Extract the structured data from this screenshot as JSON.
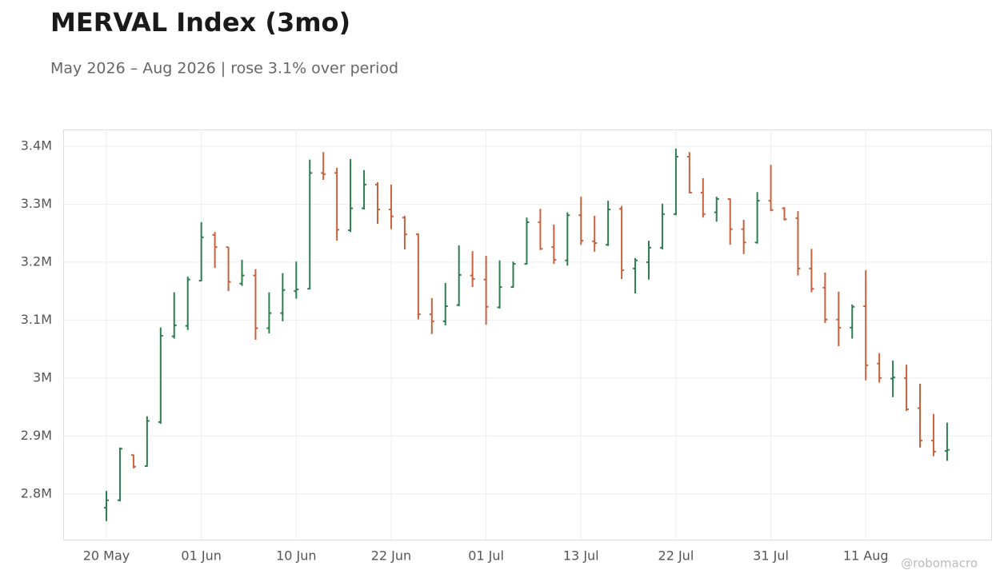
{
  "chart_data": {
    "type": "ohlc",
    "title": "MERVAL Index (3mo)",
    "subtitle": "May 2026 – Aug 2026 | rose 3.1% over period",
    "watermark": "@robomacro",
    "categories": [
      "20 May",
      null,
      null,
      null,
      null,
      null,
      null,
      "01 Jun",
      null,
      null,
      null,
      null,
      null,
      null,
      "10 Jun",
      null,
      null,
      null,
      null,
      null,
      null,
      "22 Jun",
      null,
      null,
      null,
      null,
      null,
      null,
      "01 Jul",
      null,
      null,
      null,
      null,
      null,
      null,
      "13 Jul",
      null,
      null,
      null,
      null,
      null,
      null,
      "22 Jul",
      null,
      null,
      null,
      null,
      null,
      null,
      "31 Jul",
      null,
      null,
      null,
      null,
      null,
      null,
      "11 Aug",
      null,
      null,
      null,
      null,
      null,
      null
    ],
    "open": [
      2776000,
      2789000,
      2867000,
      2848000,
      2924000,
      3072000,
      3090000,
      3168000,
      3247000,
      3226000,
      3163000,
      3177000,
      3086000,
      3112000,
      3150000,
      3154000,
      3354000,
      3354000,
      3255000,
      3293000,
      3334000,
      3291000,
      3277000,
      3248000,
      3110000,
      3098000,
      3126000,
      3177000,
      3170000,
      3122000,
      3157000,
      3197000,
      3269000,
      3226000,
      3203000,
      3281000,
      3236000,
      3230000,
      3292000,
      3189000,
      3200000,
      3225000,
      3283000,
      3382000,
      3320000,
      3286000,
      3309000,
      3257000,
      3234000,
      3306000,
      3293000,
      3276000,
      3189000,
      3156000,
      3101000,
      3087000,
      3124000,
      3025000,
      2999000,
      3000000,
      2948000,
      2892000,
      2874000
    ],
    "high": [
      2805000,
      2880000,
      2868000,
      2934000,
      3087000,
      3148000,
      3175000,
      3269000,
      3252000,
      3226000,
      3204000,
      3188000,
      3148000,
      3181000,
      3201000,
      3377000,
      3390000,
      3363000,
      3378000,
      3359000,
      3338000,
      3334000,
      3280000,
      3250000,
      3138000,
      3164000,
      3229000,
      3219000,
      3211000,
      3203000,
      3201000,
      3277000,
      3292000,
      3265000,
      3286000,
      3313000,
      3280000,
      3306000,
      3297000,
      3207000,
      3237000,
      3301000,
      3396000,
      3390000,
      3345000,
      3313000,
      3310000,
      3273000,
      3321000,
      3368000,
      3295000,
      3288000,
      3223000,
      3182000,
      3149000,
      3127000,
      3186000,
      3043000,
      3030000,
      3023000,
      2990000,
      2938000,
      2923000
    ],
    "low": [
      2753000,
      2787000,
      2844000,
      2847000,
      2921000,
      3068000,
      3083000,
      3167000,
      3190000,
      3150000,
      3159000,
      3066000,
      3077000,
      3098000,
      3137000,
      3153000,
      3342000,
      3237000,
      3252000,
      3291000,
      3266000,
      3257000,
      3222000,
      3101000,
      3076000,
      3091000,
      3124000,
      3157000,
      3092000,
      3120000,
      3156000,
      3196000,
      3221000,
      3197000,
      3194000,
      3230000,
      3218000,
      3228000,
      3171000,
      3146000,
      3170000,
      3222000,
      3281000,
      3319000,
      3277000,
      3270000,
      3230000,
      3214000,
      3232000,
      3288000,
      3272000,
      3177000,
      3148000,
      3095000,
      3055000,
      3068000,
      2996000,
      2992000,
      2967000,
      2943000,
      2880000,
      2865000,
      2857000
    ],
    "close": [
      2789000,
      2878000,
      2847000,
      2926000,
      3073000,
      3091000,
      3170000,
      3243000,
      3226000,
      3166000,
      3177000,
      3086000,
      3112000,
      3152000,
      3153000,
      3354000,
      3352000,
      3256000,
      3293000,
      3334000,
      3291000,
      3279000,
      3248000,
      3110000,
      3098000,
      3124000,
      3178000,
      3171000,
      3123000,
      3157000,
      3197000,
      3269000,
      3223000,
      3204000,
      3281000,
      3237000,
      3233000,
      3291000,
      3186000,
      3203000,
      3225000,
      3283000,
      3382000,
      3320000,
      3283000,
      3309000,
      3257000,
      3234000,
      3306000,
      3290000,
      3274000,
      3189000,
      3154000,
      3101000,
      3087000,
      3123000,
      3022000,
      3000000,
      3001000,
      2946000,
      2892000,
      2873000,
      2876000
    ],
    "up_color": "#2e7d4f",
    "down_color": "#c8623d",
    "ylim": [
      2721000,
      3429000
    ],
    "yticks": [
      {
        "value": 2800000,
        "label": "2.8M"
      },
      {
        "value": 2900000,
        "label": "2.9M"
      },
      {
        "value": 3000000,
        "label": "3M"
      },
      {
        "value": 3100000,
        "label": "3.1M"
      },
      {
        "value": 3200000,
        "label": "3.2M"
      },
      {
        "value": 3300000,
        "label": "3.3M"
      },
      {
        "value": 3400000,
        "label": "3.4M"
      }
    ],
    "grid": true
  }
}
